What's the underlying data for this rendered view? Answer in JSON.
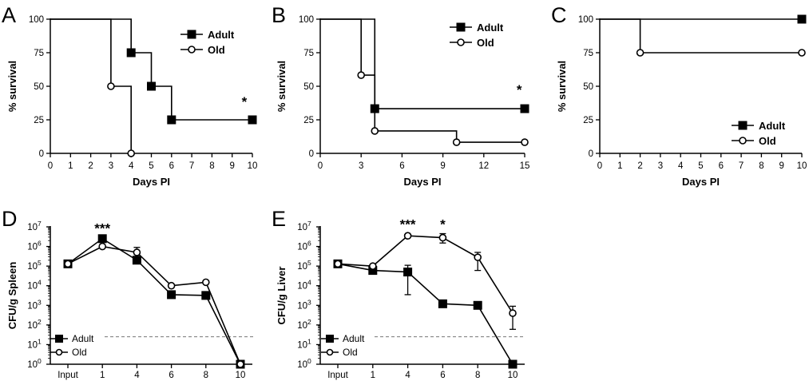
{
  "chart_data": [
    {
      "id": "A",
      "panel_label": "A",
      "type": "line",
      "step": true,
      "xlabel": "Days PI",
      "ylabel": "% survival",
      "xlim": [
        0,
        10
      ],
      "ylim": [
        0,
        100
      ],
      "xticks": [
        0,
        1,
        2,
        3,
        4,
        5,
        6,
        7,
        8,
        9,
        10
      ],
      "yticks": [
        0,
        25,
        50,
        75,
        100
      ],
      "legend_position": "top-right",
      "annotations": [
        {
          "text": "*",
          "x": 9.6,
          "y": 35
        }
      ],
      "series": [
        {
          "name": "Adult",
          "marker": "filled-square",
          "x": [
            0,
            4,
            5,
            6,
            10
          ],
          "y": [
            100,
            75,
            50,
            25,
            25
          ],
          "markers": [
            [
              4,
              75
            ],
            [
              5,
              50
            ],
            [
              6,
              25
            ],
            [
              10,
              25
            ]
          ]
        },
        {
          "name": "Old",
          "marker": "open-circle",
          "x": [
            0,
            3,
            4
          ],
          "y": [
            100,
            50,
            0
          ],
          "markers": [
            [
              3,
              50
            ],
            [
              4,
              0
            ]
          ]
        }
      ]
    },
    {
      "id": "B",
      "panel_label": "B",
      "type": "line",
      "step": true,
      "xlabel": "Days PI",
      "ylabel": "% survival",
      "xlim": [
        0,
        15
      ],
      "ylim": [
        0,
        100
      ],
      "xticks": [
        0,
        3,
        6,
        9,
        12,
        15
      ],
      "yticks": [
        0,
        25,
        50,
        75,
        100
      ],
      "legend_position": "top-right",
      "annotations": [
        {
          "text": "*",
          "x": 14.6,
          "y": 44
        }
      ],
      "series": [
        {
          "name": "Adult",
          "marker": "filled-square",
          "x": [
            0,
            4,
            15
          ],
          "y": [
            100,
            33.3,
            33.3
          ],
          "markers": [
            [
              4,
              33.3
            ],
            [
              15,
              33.3
            ]
          ]
        },
        {
          "name": "Old",
          "marker": "open-circle",
          "x": [
            0,
            3,
            4,
            10,
            15
          ],
          "y": [
            100,
            58.3,
            16.7,
            8.3,
            8.3
          ],
          "markers": [
            [
              3,
              58.3
            ],
            [
              4,
              16.7
            ],
            [
              10,
              8.3
            ],
            [
              15,
              8.3
            ]
          ]
        }
      ]
    },
    {
      "id": "C",
      "panel_label": "C",
      "type": "line",
      "step": true,
      "xlabel": "Days PI",
      "ylabel": "% survival",
      "xlim": [
        0,
        10
      ],
      "ylim": [
        0,
        100
      ],
      "xticks": [
        0,
        1,
        2,
        3,
        4,
        5,
        6,
        7,
        8,
        9,
        10
      ],
      "yticks": [
        0,
        25,
        50,
        75,
        100
      ],
      "legend_position": "bottom-right",
      "annotations": [],
      "series": [
        {
          "name": "Adult",
          "marker": "filled-square",
          "x": [
            0,
            10
          ],
          "y": [
            100,
            100
          ],
          "markers": [
            [
              10,
              100
            ]
          ]
        },
        {
          "name": "Old",
          "marker": "open-circle",
          "x": [
            0,
            2,
            10
          ],
          "y": [
            100,
            75,
            75
          ],
          "markers": [
            [
              2,
              75
            ],
            [
              10,
              75
            ]
          ]
        }
      ]
    },
    {
      "id": "D",
      "panel_label": "D",
      "type": "line",
      "step": false,
      "xlabel": "",
      "ylabel": "CFU/g Spleen",
      "yscale": "log",
      "ylim": [
        1,
        10000000
      ],
      "categories": [
        "Input",
        "1",
        "4",
        "6",
        "8",
        "10"
      ],
      "legend_position": "bottom-left",
      "detection_limit": 25,
      "annotations": [
        {
          "text": "***",
          "category": 1,
          "y": 5000000
        }
      ],
      "series": [
        {
          "name": "Adult",
          "marker": "filled-square",
          "values": [
            130000,
            2500000,
            200000,
            3500,
            3200,
            1
          ],
          "err": [
            null,
            null,
            null,
            null,
            null,
            null
          ]
        },
        {
          "name": "Old",
          "marker": "open-circle",
          "values": [
            130000,
            1000000,
            500000,
            10000,
            15000,
            1
          ],
          "err": [
            null,
            null,
            [
              250000,
              900000
            ],
            null,
            null,
            null
          ]
        }
      ]
    },
    {
      "id": "E",
      "panel_label": "E",
      "type": "line",
      "step": false,
      "xlabel": "",
      "ylabel": "CFU/g Liver",
      "yscale": "log",
      "ylim": [
        1,
        10000000
      ],
      "categories": [
        "Input",
        "1",
        "4",
        "6",
        "8",
        "10"
      ],
      "legend_position": "bottom-left",
      "detection_limit": 25,
      "annotations": [
        {
          "text": "***",
          "category": 2,
          "y": 8000000
        },
        {
          "text": "*",
          "category": 3,
          "y": 8000000
        }
      ],
      "series": [
        {
          "name": "Adult",
          "marker": "filled-square",
          "values": [
            130000,
            60000,
            50000,
            1200,
            1000,
            1
          ],
          "err": [
            null,
            null,
            [
              3500,
              110000
            ],
            null,
            null,
            null
          ]
        },
        {
          "name": "Old",
          "marker": "open-circle",
          "values": [
            130000,
            100000,
            3500000,
            2800000,
            280000,
            400
          ],
          "err": [
            null,
            null,
            null,
            [
              1500000,
              4500000
            ],
            [
              60000,
              500000
            ],
            [
              60,
              900
            ]
          ]
        }
      ]
    }
  ]
}
